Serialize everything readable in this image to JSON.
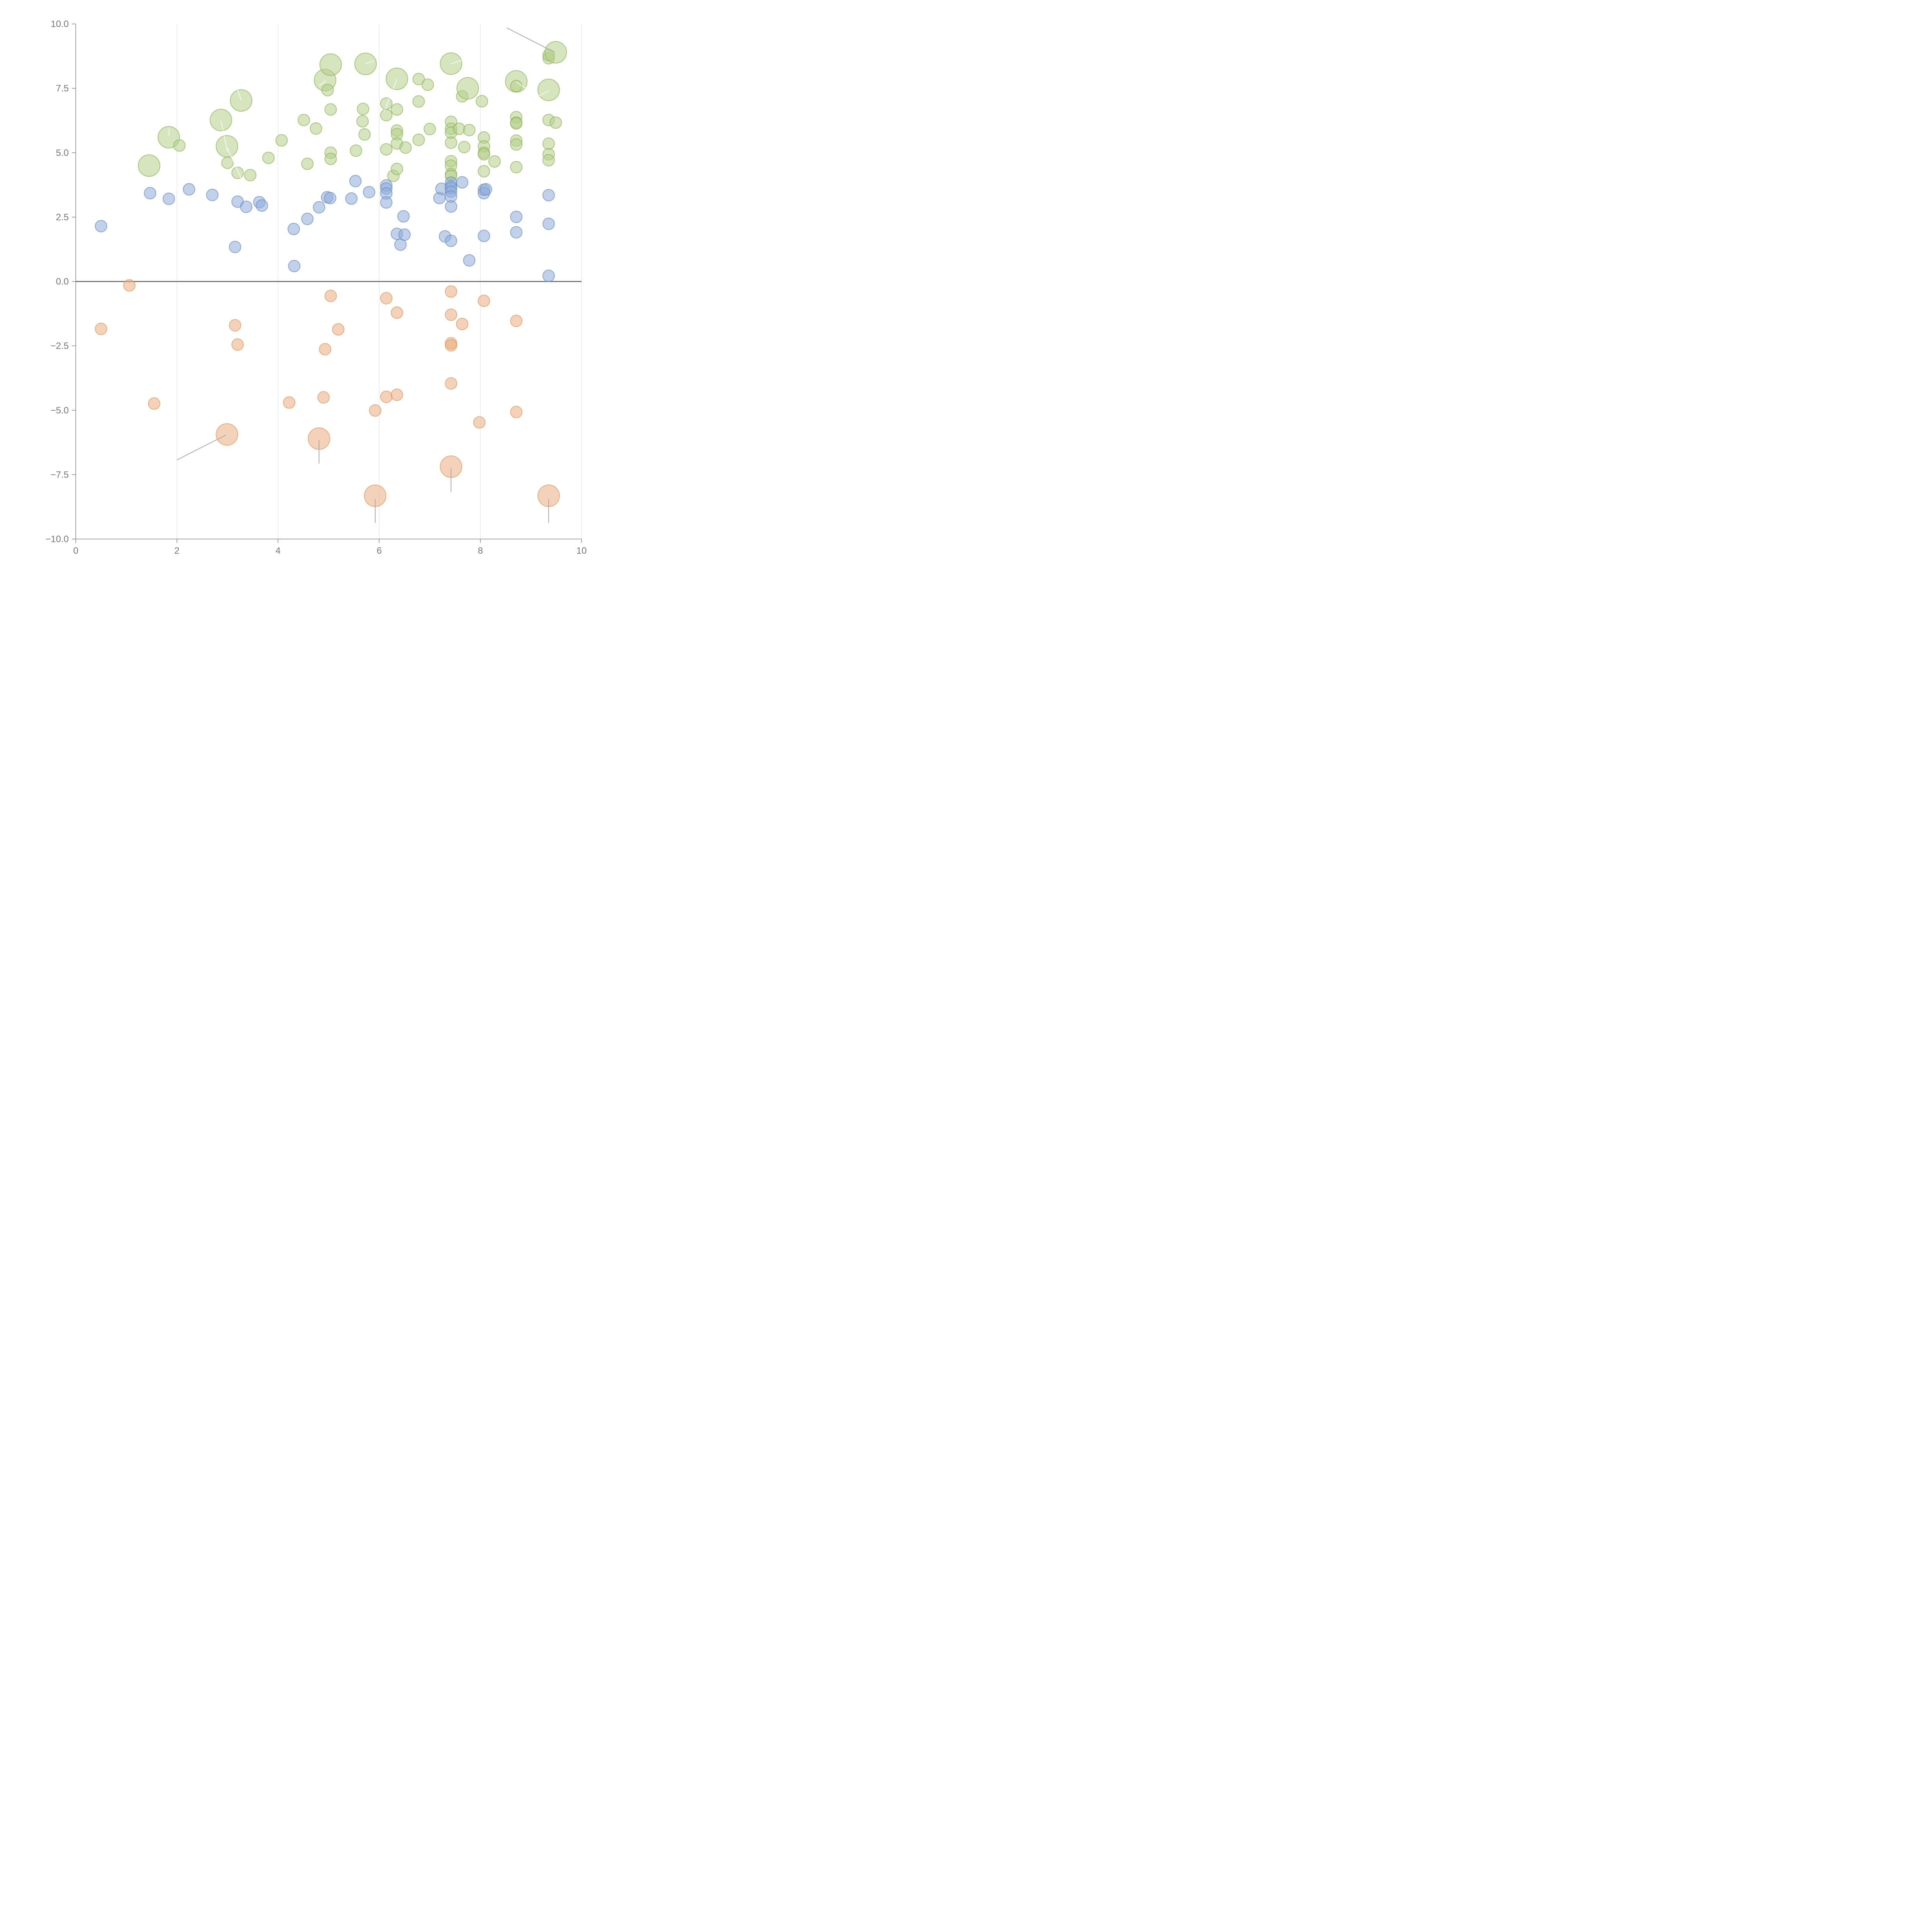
{
  "colors": {
    "green_fill": "#b5cf88",
    "green_stroke": "#8fb25a",
    "blue_fill": "#8eabd8",
    "blue_stroke": "#6a8cc4",
    "orange_fill": "#e9ad7f",
    "orange_stroke": "#de955c",
    "tick_text": "#777777",
    "axis": "#888888",
    "grid": "#dddddd"
  },
  "chart_data": {
    "type": "scatter",
    "subtype": "bubble",
    "title": "",
    "xlabel": "",
    "ylabel": "",
    "xlim": [
      0,
      10
    ],
    "ylim": [
      -10,
      10
    ],
    "x_ticks": [
      0,
      2,
      4,
      6,
      8,
      10
    ],
    "x_tick_labels": [
      "0",
      "2",
      "4",
      "6",
      "8",
      "10"
    ],
    "y_ticks": [
      10,
      7.5,
      5,
      2.5,
      0,
      -2.5,
      -5,
      -7.5,
      -10
    ],
    "y_tick_labels": [
      "10.0",
      "7.5",
      "5.0",
      "2.5",
      "0.0",
      "−2.5",
      "−5.0",
      "−7.5",
      "−10.0"
    ],
    "vertical_grid": true,
    "horizontal_grid": false,
    "zero_line": true,
    "series": [
      {
        "color_key": "green",
        "points": [
          {
            "x": 1.45,
            "y": 4.5,
            "size": "large"
          },
          {
            "x": 1.84,
            "y": 5.6,
            "size": "large"
          },
          {
            "x": 2.05,
            "y": 5.28,
            "size": "small"
          },
          {
            "x": 2.87,
            "y": 6.27,
            "size": "large"
          },
          {
            "x": 2.99,
            "y": 5.25,
            "size": "large"
          },
          {
            "x": 3.0,
            "y": 4.61,
            "size": "small"
          },
          {
            "x": 3.2,
            "y": 4.22,
            "size": "small"
          },
          {
            "x": 3.27,
            "y": 7.03,
            "size": "large"
          },
          {
            "x": 3.45,
            "y": 4.13,
            "size": "small"
          },
          {
            "x": 3.81,
            "y": 4.8,
            "size": "small"
          },
          {
            "x": 4.07,
            "y": 5.48,
            "size": "small"
          },
          {
            "x": 4.51,
            "y": 6.27,
            "size": "small"
          },
          {
            "x": 4.58,
            "y": 4.57,
            "size": "small"
          },
          {
            "x": 4.75,
            "y": 5.94,
            "size": "small"
          },
          {
            "x": 4.93,
            "y": 7.82,
            "size": "large"
          },
          {
            "x": 4.98,
            "y": 7.43,
            "size": "small"
          },
          {
            "x": 5.04,
            "y": 8.42,
            "size": "large"
          },
          {
            "x": 5.04,
            "y": 6.68,
            "size": "small"
          },
          {
            "x": 5.04,
            "y": 5.0,
            "size": "small"
          },
          {
            "x": 5.04,
            "y": 4.76,
            "size": "small"
          },
          {
            "x": 5.54,
            "y": 5.08,
            "size": "small"
          },
          {
            "x": 5.67,
            "y": 6.22,
            "size": "small"
          },
          {
            "x": 5.68,
            "y": 6.7,
            "size": "small"
          },
          {
            "x": 5.71,
            "y": 5.71,
            "size": "small"
          },
          {
            "x": 5.73,
            "y": 8.45,
            "size": "large"
          },
          {
            "x": 6.14,
            "y": 6.91,
            "size": "small"
          },
          {
            "x": 6.14,
            "y": 6.46,
            "size": "small"
          },
          {
            "x": 6.14,
            "y": 5.13,
            "size": "small"
          },
          {
            "x": 6.28,
            "y": 4.1,
            "size": "small"
          },
          {
            "x": 6.35,
            "y": 7.87,
            "size": "large"
          },
          {
            "x": 6.35,
            "y": 6.68,
            "size": "small"
          },
          {
            "x": 6.35,
            "y": 5.86,
            "size": "small"
          },
          {
            "x": 6.35,
            "y": 5.72,
            "size": "small"
          },
          {
            "x": 6.35,
            "y": 5.36,
            "size": "small"
          },
          {
            "x": 6.35,
            "y": 4.37,
            "size": "small"
          },
          {
            "x": 6.52,
            "y": 5.2,
            "size": "small"
          },
          {
            "x": 6.78,
            "y": 7.86,
            "size": "small"
          },
          {
            "x": 6.78,
            "y": 6.99,
            "size": "small"
          },
          {
            "x": 6.78,
            "y": 5.5,
            "size": "small"
          },
          {
            "x": 6.96,
            "y": 7.64,
            "size": "small"
          },
          {
            "x": 7.0,
            "y": 5.92,
            "size": "small"
          },
          {
            "x": 7.42,
            "y": 8.46,
            "size": "large"
          },
          {
            "x": 7.42,
            "y": 6.2,
            "size": "small"
          },
          {
            "x": 7.42,
            "y": 5.93,
            "size": "small"
          },
          {
            "x": 7.42,
            "y": 5.78,
            "size": "small"
          },
          {
            "x": 7.42,
            "y": 5.39,
            "size": "small"
          },
          {
            "x": 7.42,
            "y": 4.67,
            "size": "small"
          },
          {
            "x": 7.42,
            "y": 4.5,
            "size": "small"
          },
          {
            "x": 7.42,
            "y": 4.17,
            "size": "small"
          },
          {
            "x": 7.42,
            "y": 4.1,
            "size": "small"
          },
          {
            "x": 7.58,
            "y": 5.93,
            "size": "small"
          },
          {
            "x": 7.64,
            "y": 7.19,
            "size": "small"
          },
          {
            "x": 7.68,
            "y": 5.22,
            "size": "small"
          },
          {
            "x": 7.75,
            "y": 7.5,
            "size": "large"
          },
          {
            "x": 7.78,
            "y": 5.88,
            "size": "small"
          },
          {
            "x": 8.03,
            "y": 7.0,
            "size": "small"
          },
          {
            "x": 8.07,
            "y": 5.59,
            "size": "small"
          },
          {
            "x": 8.07,
            "y": 5.25,
            "size": "small"
          },
          {
            "x": 8.07,
            "y": 5.0,
            "size": "small"
          },
          {
            "x": 8.07,
            "y": 4.94,
            "size": "small"
          },
          {
            "x": 8.07,
            "y": 4.28,
            "size": "small"
          },
          {
            "x": 8.28,
            "y": 4.66,
            "size": "small"
          },
          {
            "x": 8.71,
            "y": 7.77,
            "size": "large"
          },
          {
            "x": 8.71,
            "y": 7.59,
            "size": "small"
          },
          {
            "x": 8.71,
            "y": 6.38,
            "size": "small"
          },
          {
            "x": 8.71,
            "y": 6.17,
            "size": "small"
          },
          {
            "x": 8.71,
            "y": 6.14,
            "size": "small"
          },
          {
            "x": 8.71,
            "y": 5.47,
            "size": "small"
          },
          {
            "x": 8.71,
            "y": 5.32,
            "size": "small"
          },
          {
            "x": 8.71,
            "y": 4.44,
            "size": "small"
          },
          {
            "x": 9.35,
            "y": 8.67,
            "size": "small"
          },
          {
            "x": 9.35,
            "y": 8.79,
            "size": "small"
          },
          {
            "x": 9.35,
            "y": 7.44,
            "size": "large"
          },
          {
            "x": 9.35,
            "y": 6.27,
            "size": "small"
          },
          {
            "x": 9.35,
            "y": 5.35,
            "size": "small"
          },
          {
            "x": 9.35,
            "y": 4.94,
            "size": "small"
          },
          {
            "x": 9.35,
            "y": 4.71,
            "size": "small"
          },
          {
            "x": 9.49,
            "y": 8.9,
            "size": "large"
          },
          {
            "x": 9.49,
            "y": 6.17,
            "size": "small"
          }
        ]
      },
      {
        "color_key": "blue",
        "points": [
          {
            "x": 0.5,
            "y": 2.15
          },
          {
            "x": 1.47,
            "y": 3.43
          },
          {
            "x": 1.84,
            "y": 3.21
          },
          {
            "x": 2.24,
            "y": 3.58
          },
          {
            "x": 2.7,
            "y": 3.36
          },
          {
            "x": 3.15,
            "y": 1.34
          },
          {
            "x": 3.2,
            "y": 3.1
          },
          {
            "x": 3.37,
            "y": 2.9
          },
          {
            "x": 3.63,
            "y": 3.08
          },
          {
            "x": 3.68,
            "y": 2.95
          },
          {
            "x": 4.31,
            "y": 2.04
          },
          {
            "x": 4.32,
            "y": 0.6
          },
          {
            "x": 4.58,
            "y": 2.43
          },
          {
            "x": 4.81,
            "y": 2.88
          },
          {
            "x": 4.97,
            "y": 3.27
          },
          {
            "x": 5.03,
            "y": 3.24
          },
          {
            "x": 5.45,
            "y": 3.22
          },
          {
            "x": 5.53,
            "y": 3.9
          },
          {
            "x": 5.8,
            "y": 3.47
          },
          {
            "x": 6.14,
            "y": 3.73
          },
          {
            "x": 6.14,
            "y": 3.61
          },
          {
            "x": 6.14,
            "y": 3.42
          },
          {
            "x": 6.14,
            "y": 3.07
          },
          {
            "x": 6.35,
            "y": 1.85
          },
          {
            "x": 6.42,
            "y": 1.43
          },
          {
            "x": 6.48,
            "y": 2.53
          },
          {
            "x": 6.5,
            "y": 1.82
          },
          {
            "x": 7.19,
            "y": 3.24
          },
          {
            "x": 7.23,
            "y": 3.6
          },
          {
            "x": 7.3,
            "y": 1.75
          },
          {
            "x": 7.42,
            "y": 3.84
          },
          {
            "x": 7.42,
            "y": 3.69
          },
          {
            "x": 7.42,
            "y": 3.62
          },
          {
            "x": 7.42,
            "y": 3.49
          },
          {
            "x": 7.42,
            "y": 3.3
          },
          {
            "x": 7.42,
            "y": 2.91
          },
          {
            "x": 7.42,
            "y": 1.58
          },
          {
            "x": 7.64,
            "y": 3.85
          },
          {
            "x": 7.78,
            "y": 0.82
          },
          {
            "x": 8.07,
            "y": 3.56
          },
          {
            "x": 8.07,
            "y": 3.43
          },
          {
            "x": 8.07,
            "y": 1.77
          },
          {
            "x": 8.11,
            "y": 3.58
          },
          {
            "x": 8.71,
            "y": 2.51
          },
          {
            "x": 8.71,
            "y": 1.91
          },
          {
            "x": 9.35,
            "y": 3.35
          },
          {
            "x": 9.35,
            "y": 2.24
          },
          {
            "x": 9.35,
            "y": 0.22
          }
        ]
      },
      {
        "color_key": "orange",
        "points": [
          {
            "x": 0.5,
            "y": -1.84,
            "size": "small"
          },
          {
            "x": 1.06,
            "y": -0.15,
            "size": "small"
          },
          {
            "x": 1.55,
            "y": -4.74,
            "size": "small"
          },
          {
            "x": 2.99,
            "y": -5.94,
            "size": "large"
          },
          {
            "x": 3.15,
            "y": -1.7,
            "size": "small"
          },
          {
            "x": 3.2,
            "y": -2.45,
            "size": "small"
          },
          {
            "x": 4.22,
            "y": -4.7,
            "size": "small"
          },
          {
            "x": 4.81,
            "y": -6.1,
            "size": "large"
          },
          {
            "x": 4.9,
            "y": -4.5,
            "size": "small"
          },
          {
            "x": 4.93,
            "y": -2.63,
            "size": "small"
          },
          {
            "x": 5.04,
            "y": -0.56,
            "size": "small"
          },
          {
            "x": 5.19,
            "y": -1.86,
            "size": "small"
          },
          {
            "x": 5.92,
            "y": -5.01,
            "size": "small"
          },
          {
            "x": 5.92,
            "y": -8.32,
            "size": "large"
          },
          {
            "x": 6.14,
            "y": -0.65,
            "size": "small"
          },
          {
            "x": 6.14,
            "y": -4.48,
            "size": "small"
          },
          {
            "x": 6.35,
            "y": -1.21,
            "size": "small"
          },
          {
            "x": 6.35,
            "y": -4.4,
            "size": "small"
          },
          {
            "x": 7.42,
            "y": -0.39,
            "size": "small"
          },
          {
            "x": 7.42,
            "y": -1.29,
            "size": "small"
          },
          {
            "x": 7.42,
            "y": -2.4,
            "size": "small"
          },
          {
            "x": 7.42,
            "y": -2.48,
            "size": "small"
          },
          {
            "x": 7.42,
            "y": -3.96,
            "size": "small"
          },
          {
            "x": 7.42,
            "y": -7.19,
            "size": "large"
          },
          {
            "x": 7.64,
            "y": -1.65,
            "size": "small"
          },
          {
            "x": 7.98,
            "y": -5.47,
            "size": "small"
          },
          {
            "x": 8.07,
            "y": -0.75,
            "size": "small"
          },
          {
            "x": 8.71,
            "y": -1.53,
            "size": "small"
          },
          {
            "x": 8.71,
            "y": -5.07,
            "size": "small"
          },
          {
            "x": 9.35,
            "y": -8.32,
            "size": "large"
          }
        ]
      }
    ],
    "leader_lines": [
      {
        "x1": 8.52,
        "y1": 9.85,
        "x2": 9.47,
        "y2": 8.9,
        "color_key": "grey"
      },
      {
        "x1": 2.0,
        "y1": -6.93,
        "x2": 2.97,
        "y2": -5.96,
        "color_key": "grey"
      },
      {
        "x1": 4.81,
        "y1": -6.15,
        "x2": 4.81,
        "y2": -7.07,
        "color_key": "grey"
      },
      {
        "x1": 5.92,
        "y1": -8.45,
        "x2": 5.92,
        "y2": -9.37,
        "color_key": "grey"
      },
      {
        "x1": 7.42,
        "y1": -7.25,
        "x2": 7.42,
        "y2": -8.17,
        "color_key": "grey"
      },
      {
        "x1": 9.35,
        "y1": -8.45,
        "x2": 9.35,
        "y2": -9.37,
        "color_key": "grey"
      },
      {
        "x1": 1.84,
        "y1": 5.65,
        "x2": 1.85,
        "y2": 5.95,
        "color_key": "white"
      },
      {
        "x1": 2.87,
        "y1": 6.25,
        "x2": 3.0,
        "y2": 5.05,
        "color_key": "white"
      },
      {
        "x1": 2.99,
        "y1": 5.2,
        "x2": 3.38,
        "y2": 3.55,
        "color_key": "white"
      },
      {
        "x1": 3.27,
        "y1": 7.05,
        "x2": 3.2,
        "y2": 7.45,
        "color_key": "white"
      },
      {
        "x1": 4.81,
        "y1": 7.6,
        "x2": 4.95,
        "y2": 7.8,
        "color_key": "white"
      },
      {
        "x1": 5.73,
        "y1": 8.45,
        "x2": 5.9,
        "y2": 8.58,
        "color_key": "white"
      },
      {
        "x1": 6.35,
        "y1": 7.85,
        "x2": 6.1,
        "y2": 6.6,
        "color_key": "white"
      },
      {
        "x1": 7.42,
        "y1": 8.45,
        "x2": 7.65,
        "y2": 8.6,
        "color_key": "white"
      },
      {
        "x1": 8.71,
        "y1": 7.75,
        "x2": 8.9,
        "y2": 7.5,
        "color_key": "white"
      },
      {
        "x1": 9.35,
        "y1": 7.4,
        "x2": 9.15,
        "y2": 7.2,
        "color_key": "white"
      }
    ]
  }
}
